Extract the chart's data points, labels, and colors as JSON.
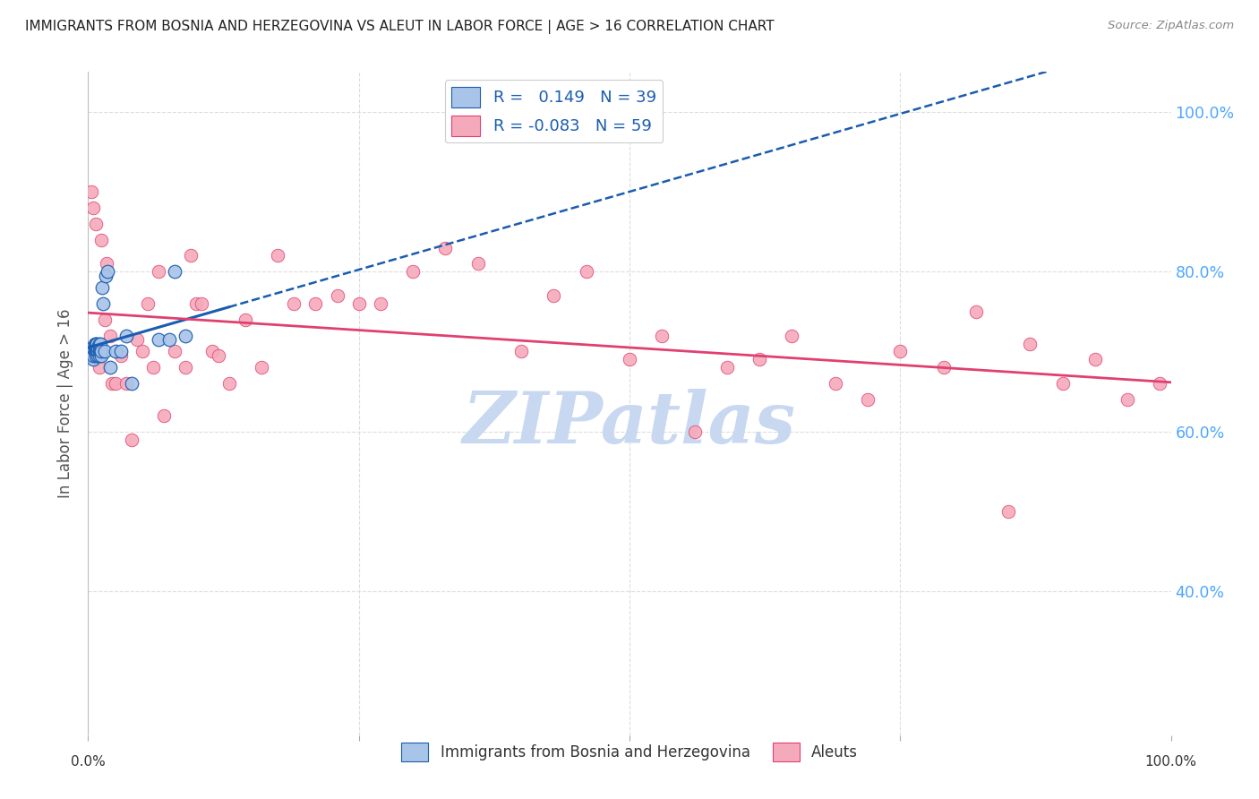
{
  "title": "IMMIGRANTS FROM BOSNIA AND HERZEGOVINA VS ALEUT IN LABOR FORCE | AGE > 16 CORRELATION CHART",
  "source": "Source: ZipAtlas.com",
  "ylabel": "In Labor Force | Age > 16",
  "y_ticks": [
    0.4,
    0.6,
    0.8,
    1.0
  ],
  "y_tick_labels": [
    "40.0%",
    "60.0%",
    "80.0%",
    "100.0%"
  ],
  "xlim": [
    0.0,
    1.0
  ],
  "ylim": [
    0.22,
    1.05
  ],
  "blue_R": 0.149,
  "blue_N": 39,
  "pink_R": -0.083,
  "pink_N": 59,
  "legend_label_blue": "Immigrants from Bosnia and Herzegovina",
  "legend_label_pink": "Aleuts",
  "blue_color": "#A8C4E8",
  "pink_color": "#F5AABB",
  "blue_line_color": "#1A5CB0",
  "pink_line_color": "#E04070",
  "blue_scatter_x": [
    0.003,
    0.004,
    0.004,
    0.005,
    0.005,
    0.006,
    0.006,
    0.006,
    0.007,
    0.007,
    0.007,
    0.008,
    0.008,
    0.008,
    0.009,
    0.009,
    0.009,
    0.01,
    0.01,
    0.01,
    0.01,
    0.011,
    0.011,
    0.012,
    0.012,
    0.013,
    0.014,
    0.015,
    0.016,
    0.018,
    0.02,
    0.025,
    0.03,
    0.035,
    0.04,
    0.065,
    0.075,
    0.08,
    0.09
  ],
  "blue_scatter_y": [
    0.695,
    0.7,
    0.705,
    0.69,
    0.695,
    0.7,
    0.705,
    0.71,
    0.695,
    0.7,
    0.71,
    0.7,
    0.705,
    0.71,
    0.695,
    0.7,
    0.705,
    0.695,
    0.7,
    0.705,
    0.71,
    0.7,
    0.71,
    0.695,
    0.7,
    0.78,
    0.76,
    0.7,
    0.795,
    0.8,
    0.68,
    0.7,
    0.7,
    0.72,
    0.66,
    0.715,
    0.715,
    0.8,
    0.72
  ],
  "pink_scatter_x": [
    0.003,
    0.005,
    0.007,
    0.009,
    0.01,
    0.012,
    0.015,
    0.017,
    0.02,
    0.022,
    0.025,
    0.03,
    0.035,
    0.04,
    0.045,
    0.05,
    0.055,
    0.06,
    0.065,
    0.07,
    0.08,
    0.09,
    0.095,
    0.1,
    0.105,
    0.115,
    0.12,
    0.13,
    0.145,
    0.16,
    0.175,
    0.19,
    0.21,
    0.23,
    0.25,
    0.27,
    0.3,
    0.33,
    0.36,
    0.4,
    0.43,
    0.46,
    0.5,
    0.53,
    0.56,
    0.59,
    0.62,
    0.65,
    0.69,
    0.72,
    0.75,
    0.79,
    0.82,
    0.85,
    0.87,
    0.9,
    0.93,
    0.96,
    0.99
  ],
  "pink_scatter_y": [
    0.9,
    0.88,
    0.86,
    0.7,
    0.68,
    0.84,
    0.74,
    0.81,
    0.72,
    0.66,
    0.66,
    0.695,
    0.66,
    0.59,
    0.715,
    0.7,
    0.76,
    0.68,
    0.8,
    0.62,
    0.7,
    0.68,
    0.82,
    0.76,
    0.76,
    0.7,
    0.695,
    0.66,
    0.74,
    0.68,
    0.82,
    0.76,
    0.76,
    0.77,
    0.76,
    0.76,
    0.8,
    0.83,
    0.81,
    0.7,
    0.77,
    0.8,
    0.69,
    0.72,
    0.6,
    0.68,
    0.69,
    0.72,
    0.66,
    0.64,
    0.7,
    0.68,
    0.75,
    0.5,
    0.71,
    0.66,
    0.69,
    0.64,
    0.66
  ],
  "background_color": "#FFFFFF",
  "grid_color": "#DDDDDD",
  "title_color": "#222222",
  "axis_label_color": "#555555",
  "tick_color_right": "#4DA6FF",
  "watermark_text": "ZIPatlas",
  "watermark_color": "#C8D8F0",
  "blue_line_x_solid_end": 0.13,
  "blue_line_x_dash_start": 0.13
}
